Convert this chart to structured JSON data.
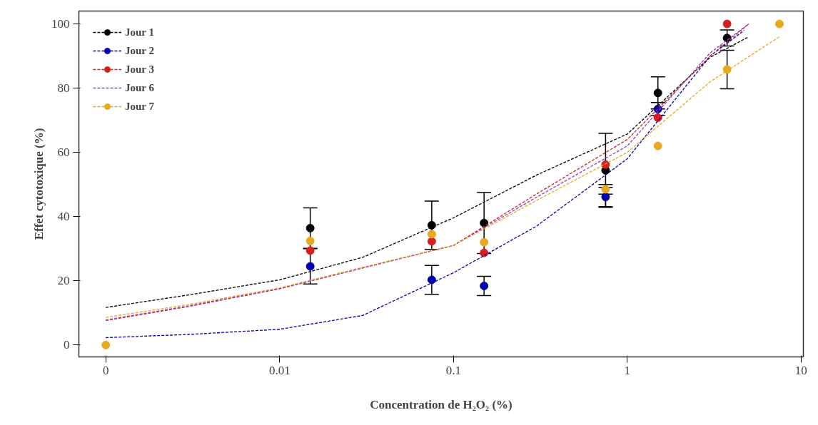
{
  "chart_data": {
    "type": "scatter",
    "xlabel": "Concentration de H₂O₂ (%)",
    "ylabel": "Effet cytotoxique (%)",
    "x": [
      0.001,
      0.015,
      0.075,
      0.15,
      0.75,
      1.5,
      3.75,
      7.5
    ],
    "log": "x",
    "xlim": [
      0.0007,
      10.3
    ],
    "ylim": [
      -3.7,
      104
    ],
    "xticks": [
      {
        "value": 0.001,
        "label": "0"
      },
      {
        "value": 0.01,
        "label": "0.01"
      },
      {
        "value": 0.1,
        "label": "0.1"
      },
      {
        "value": 1,
        "label": "1"
      },
      {
        "value": 10,
        "label": "10"
      }
    ],
    "yticks": [
      0,
      20,
      40,
      60,
      80,
      100
    ],
    "grid": false,
    "legend": "top left",
    "marker": "circle",
    "line_style": "dashed",
    "series": [
      {
        "name": "Jour 1",
        "color": "#000000",
        "values": [
          null,
          36.4,
          37.3,
          38,
          54.4,
          78.5,
          95.6,
          null
        ],
        "errors": [
          null,
          6.3,
          7.5,
          9.5,
          11.5,
          5,
          2.5,
          null
        ]
      },
      {
        "name": "Jour 2",
        "color": "#0000b0",
        "values": [
          null,
          24.5,
          20.3,
          18.4,
          46.1,
          73.5,
          null,
          null
        ],
        "errors": [
          null,
          5.5,
          4.5,
          3,
          3,
          2,
          null,
          null
        ]
      },
      {
        "name": "Jour 3",
        "color": "#d81e1e",
        "values": [
          null,
          29.4,
          32.3,
          28.7,
          56.2,
          70.8,
          100,
          null
        ]
      },
      {
        "name": "Jour 6",
        "color": "#9040c0",
        "values": [
          null,
          null,
          null,
          null,
          null,
          null,
          null,
          null
        ]
      },
      {
        "name": "Jour 7",
        "color": "#e8a820",
        "values": [
          0,
          32.4,
          34.5,
          32,
          48.5,
          62,
          85.8,
          100
        ],
        "errors": [
          null,
          null,
          null,
          null,
          1.5,
          null,
          6,
          null
        ]
      },
      {
        "type": "line",
        "marker": "none",
        "color": "#000000",
        "x": [
          0.001,
          0.003,
          0.01,
          0.03,
          0.1,
          0.3,
          1,
          3,
          5
        ],
        "values": [
          11.7,
          15.6,
          20.3,
          27.3,
          39.6,
          52.9,
          65.7,
          89.6,
          96
        ]
      },
      {
        "type": "line",
        "marker": "none",
        "color": "#0000b0",
        "x": [
          0.001,
          0.003,
          0.01,
          0.03,
          0.1,
          0.3,
          1,
          3,
          4.7
        ],
        "values": [
          2.3,
          3.3,
          4.9,
          9.2,
          22.5,
          37,
          58,
          90,
          98
        ]
      },
      {
        "type": "line",
        "marker": "none",
        "color": "#d81e1e",
        "x": [
          0.001,
          0.003,
          0.01,
          0.03,
          0.1,
          0.3,
          1,
          3,
          5
        ],
        "values": [
          7.6,
          12,
          17.5,
          24,
          31,
          47,
          64,
          90,
          100
        ]
      },
      {
        "type": "line",
        "marker": "none",
        "color": "#9040c0",
        "x": [
          0.001,
          0.003,
          0.01,
          0.03,
          0.1,
          0.3,
          1,
          3,
          5
        ],
        "values": [
          7.8,
          12.2,
          17.6,
          24,
          31,
          46,
          62,
          91,
          100
        ]
      },
      {
        "type": "line",
        "marker": "none",
        "color": "#e8a820",
        "x": [
          0.001,
          0.003,
          0.01,
          0.03,
          0.1,
          0.3,
          1,
          3,
          7.5
        ],
        "values": [
          8.6,
          12.6,
          17.8,
          24.2,
          31,
          45,
          60,
          82,
          96
        ]
      }
    ]
  }
}
